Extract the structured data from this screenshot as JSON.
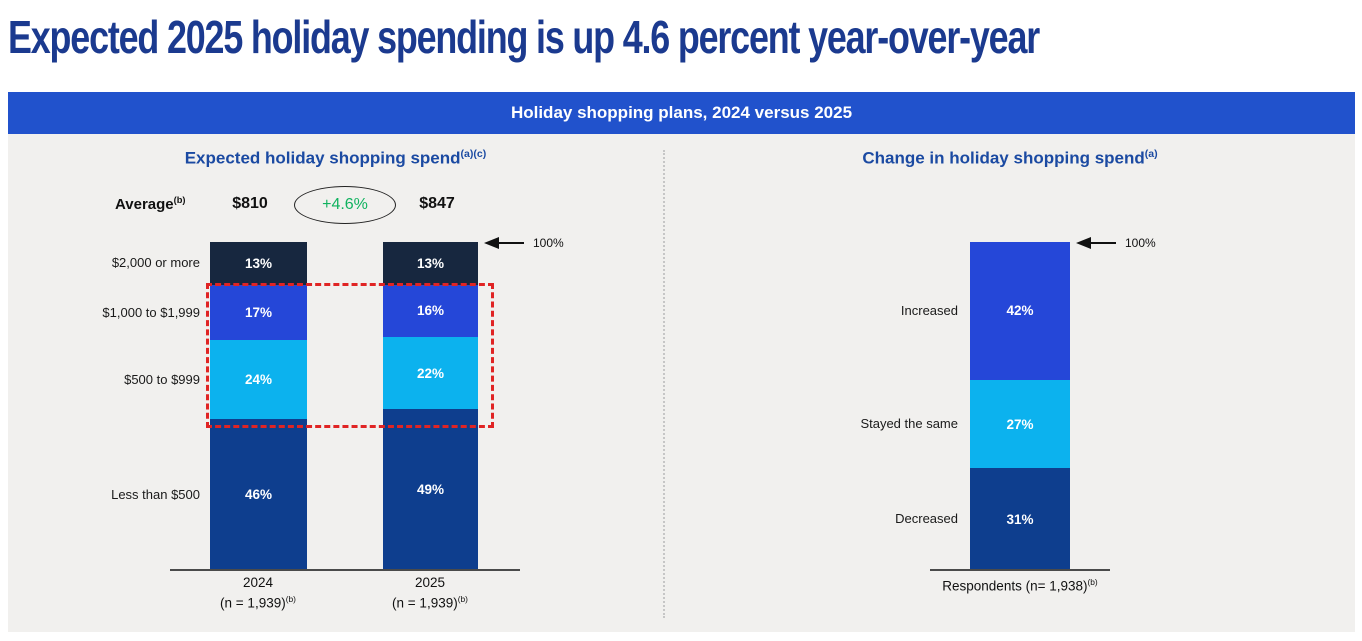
{
  "page_title": "Expected 2025 holiday spending is up 4.6 percent year-over-year",
  "banner": {
    "title": "Holiday shopping plans, 2024 versus 2025"
  },
  "left_chart": {
    "title": "Expected holiday shopping spend",
    "title_sup": "(a)(c)",
    "average_label": "Average",
    "average_sup": "(b)",
    "average_2024": "$810",
    "change_label": "+4.6%",
    "average_2025": "$847",
    "hundred_label": "100%",
    "x_labels": [
      {
        "year": "2024",
        "n": "(n = 1,939)",
        "sup": "(b)"
      },
      {
        "year": "2025",
        "n": "(n = 1,939)",
        "sup": "(b)"
      }
    ]
  },
  "right_chart": {
    "title": "Change in holiday shopping spend",
    "title_sup": "(a)",
    "hundred_label": "100%",
    "x_label": "Respondents (n= 1,938)",
    "x_label_sup": "(b)"
  },
  "colors": {
    "title_navy": "#1b3a8f",
    "chart_title_blue": "#1b4aa2",
    "banner_blue": "#2152cc",
    "accent_green": "#10b25f",
    "highlight_red": "#e02424",
    "left_segments": [
      "#17273f",
      "#2547d8",
      "#0cb2ee",
      "#0e3e8e"
    ],
    "right_segments": [
      "#2547d8",
      "#0cb2ee",
      "#0e3e8e"
    ]
  },
  "chart_data": [
    {
      "type": "bar",
      "stacked": true,
      "title": "Expected holiday shopping spend(a)(c)",
      "categories": [
        "2024 (n = 1,939)(b)",
        "2025 (n = 1,939)(b)"
      ],
      "series": [
        {
          "name": "$2,000 or more",
          "values": [
            13,
            13
          ]
        },
        {
          "name": "$1,000 to $1,999",
          "values": [
            17,
            16
          ]
        },
        {
          "name": "$500 to $999",
          "values": [
            24,
            22
          ]
        },
        {
          "name": "Less than $500",
          "values": [
            46,
            49
          ]
        }
      ],
      "unit": "%",
      "ylim": [
        0,
        100
      ],
      "legend_position": "left-of-bars",
      "grid": false,
      "annotations": {
        "average_2024": "$810",
        "average_2025": "$847",
        "change": "+4.6%",
        "axis_marker": "100%",
        "highlight": "red dashed box around the $1,000 to $1,999 and $500 to $999 segments of both bars"
      }
    },
    {
      "type": "bar",
      "stacked": true,
      "title": "Change in holiday shopping spend(a)",
      "categories": [
        "Respondents (n= 1,938)(b)"
      ],
      "series": [
        {
          "name": "Increased",
          "values": [
            42
          ]
        },
        {
          "name": "Stayed the same",
          "values": [
            27
          ]
        },
        {
          "name": "Decreased",
          "values": [
            31
          ]
        }
      ],
      "unit": "%",
      "ylim": [
        0,
        100
      ],
      "legend_position": "left-of-bars",
      "grid": false,
      "annotations": {
        "axis_marker": "100%"
      }
    }
  ]
}
